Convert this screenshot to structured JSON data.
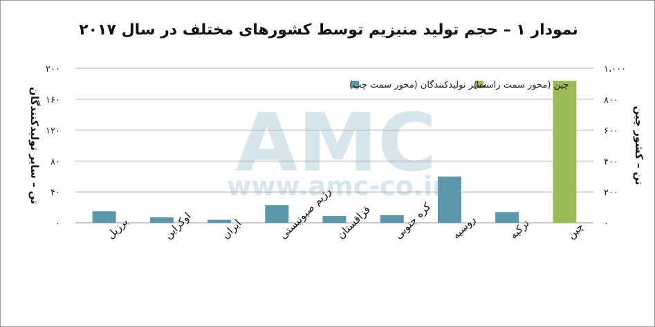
{
  "chart_data": {
    "type": "bar",
    "title": "نمودار ۱ – حجم تولید منیزیم توسط کشورهای مختلف در سال ۲۰۱۷",
    "categories": [
      "برزیل",
      "اوکراین",
      "ایران",
      "رژیم صیونیستی",
      "قزاقستان",
      "کره جنوبی",
      "روسیه",
      "ترکیه",
      "چین"
    ],
    "series": [
      {
        "name": "سایر تولیدکنندگان (محور سمت چپ)",
        "axis": "left",
        "color": "#5b98ab",
        "values": [
          15,
          7,
          4,
          23,
          9,
          10,
          60,
          14,
          null
        ]
      },
      {
        "name": "چین (محور سمت راست)",
        "axis": "right",
        "color": "#9bbb59",
        "values": [
          null,
          null,
          null,
          null,
          null,
          null,
          null,
          null,
          920
        ]
      }
    ],
    "left_axis": {
      "label": "تن – سایر تولیدکنندگان",
      "ylim": [
        0,
        200
      ],
      "ticks": [
        0,
        40,
        80,
        120,
        160,
        200
      ],
      "tick_labels": [
        "۰",
        "۴۰",
        "۸۰",
        "۱۲۰",
        "۱۶۰",
        "۲۰۰"
      ]
    },
    "right_axis": {
      "label": "تن – کشور چین",
      "ylim": [
        0,
        1000
      ],
      "ticks": [
        0,
        200,
        400,
        600,
        800,
        1000
      ],
      "tick_labels": [
        "۰",
        "۲۰۰",
        "۴۰۰",
        "۶۰۰",
        "۸۰۰",
        "۱،۰۰۰"
      ]
    },
    "grid": true,
    "legend_position": "top-right"
  },
  "watermark": {
    "logo": "AMC",
    "url": "www.amc-co.ir"
  }
}
